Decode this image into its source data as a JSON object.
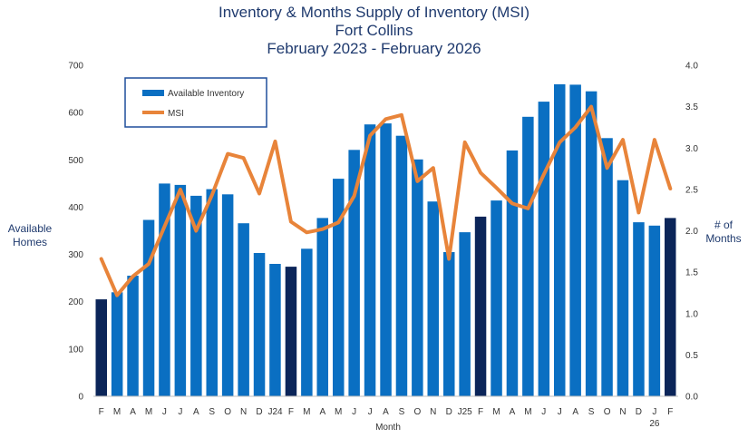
{
  "chart_data": {
    "type": "bar",
    "title": "Inventory & Months Supply of Inventory (MSI)",
    "title_line2": "Fort Collins",
    "subtitle": "February 2023 - February 2026",
    "xlabel": "Month",
    "ylabel": "Available Homes",
    "y2label": "# of Months",
    "ylim": [
      0,
      700
    ],
    "y2lim": [
      0,
      4.0
    ],
    "yticks": [
      "0",
      "100",
      "200",
      "300",
      "400",
      "500",
      "600",
      "700"
    ],
    "y2ticks": [
      "0.0",
      "0.5",
      "1.0",
      "1.5",
      "2.0",
      "2.5",
      "3.0",
      "3.5",
      "4.0"
    ],
    "categories": [
      "F",
      "M",
      "A",
      "M",
      "J",
      "J",
      "A",
      "S",
      "O",
      "N",
      "D",
      "J24",
      "F",
      "M",
      "A",
      "M",
      "J",
      "J",
      "A",
      "S",
      "O",
      "N",
      "D",
      "J25",
      "F",
      "M",
      "A",
      "M",
      "J",
      "J",
      "A",
      "S",
      "O",
      "N",
      "D",
      "J",
      "F"
    ],
    "category_sublabels": {
      "35": "26"
    },
    "grid": false,
    "legend_position": "top-left",
    "colors": {
      "bar": "#0a6fc2",
      "bar_highlight": "#0b2559",
      "line": "#e8843a",
      "title": "#1f3a6e",
      "legend_border": "#1f4e9c"
    },
    "highlight_indices": [
      0,
      12,
      24,
      36
    ],
    "series": [
      {
        "name": "Available Inventory",
        "type": "bar",
        "axis": "left",
        "values": [
          205,
          220,
          255,
          373,
          450,
          447,
          424,
          438,
          427,
          366,
          303,
          280,
          274,
          312,
          377,
          460,
          521,
          575,
          577,
          551,
          501,
          412,
          305,
          347,
          380,
          414,
          520,
          591,
          623,
          660,
          659,
          645,
          546,
          457,
          368,
          361,
          377
        ]
      },
      {
        "name": "MSI",
        "type": "line",
        "axis": "right",
        "values": [
          1.66,
          1.22,
          1.45,
          1.6,
          2.05,
          2.5,
          2.0,
          2.43,
          2.93,
          2.88,
          2.45,
          3.08,
          2.11,
          1.98,
          2.02,
          2.1,
          2.42,
          3.15,
          3.35,
          3.4,
          2.6,
          2.76,
          1.66,
          3.07,
          2.7,
          2.52,
          2.33,
          2.27,
          2.68,
          3.07,
          3.25,
          3.5,
          2.76,
          3.1,
          2.22,
          3.1,
          2.51
        ]
      }
    ]
  }
}
